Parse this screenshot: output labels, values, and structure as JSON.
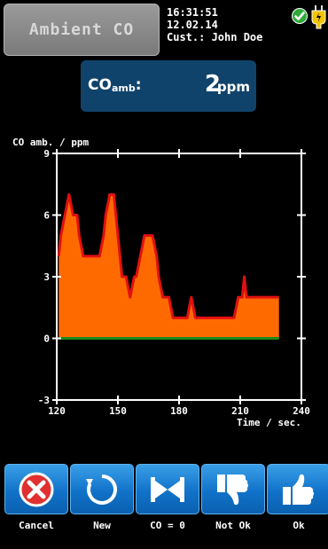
{
  "header": {
    "title": "Ambient CO",
    "time": "16:31:51",
    "date": "12.02.14",
    "customer": "Cust.: John Doe",
    "status_icon": "check-icon",
    "power_icon": "plug-icon"
  },
  "reading": {
    "label_main": "CO",
    "label_sub": "amb",
    "label_suffix": ":",
    "value": "2",
    "unit": "ppm"
  },
  "chart_data": {
    "type": "area",
    "title": "CO amb. / ppm",
    "xlabel": "Time / sec.",
    "ylabel": "CO amb. / ppm",
    "xlim": [
      120,
      240
    ],
    "ylim": [
      -3,
      9
    ],
    "x_ticks": [
      120,
      150,
      180,
      210,
      240
    ],
    "y_ticks": [
      -3,
      0,
      3,
      6,
      9
    ],
    "grid": false,
    "colors": {
      "fill": "#ff6a00",
      "line": "#e01010",
      "baseline": "#1a8a1a"
    },
    "x": [
      121,
      122,
      124,
      126,
      128,
      130,
      131,
      133,
      135,
      137,
      139,
      141,
      143,
      144,
      146,
      148,
      149,
      151,
      152,
      154,
      156,
      158,
      159,
      161,
      163,
      165,
      167,
      169,
      170,
      172,
      175,
      177,
      179,
      182,
      184,
      186,
      188,
      189,
      190,
      194,
      196,
      198,
      200,
      203,
      205,
      207,
      209,
      210,
      211,
      212,
      213,
      216,
      218,
      220,
      223,
      226,
      229
    ],
    "values": [
      4,
      5,
      6,
      7,
      6,
      6,
      5,
      4,
      4,
      4,
      4,
      4,
      5,
      6,
      7,
      7,
      6,
      4,
      3,
      3,
      2,
      3,
      3,
      4,
      5,
      5,
      5,
      4,
      3,
      2,
      2,
      1,
      1,
      1,
      1,
      2,
      1,
      1,
      1,
      1,
      1,
      1,
      1,
      1,
      1,
      1,
      2,
      2,
      2,
      3,
      2,
      2,
      2,
      2,
      2,
      2,
      2
    ]
  },
  "buttons": [
    {
      "label": "Cancel",
      "icon": "cancel-icon"
    },
    {
      "label": "New",
      "icon": "refresh-icon"
    },
    {
      "label": "CO = 0",
      "icon": "zero-valve-icon"
    },
    {
      "label": "Not Ok",
      "icon": "thumbs-down-icon"
    },
    {
      "label": "Ok",
      "icon": "thumbs-up-icon"
    }
  ]
}
